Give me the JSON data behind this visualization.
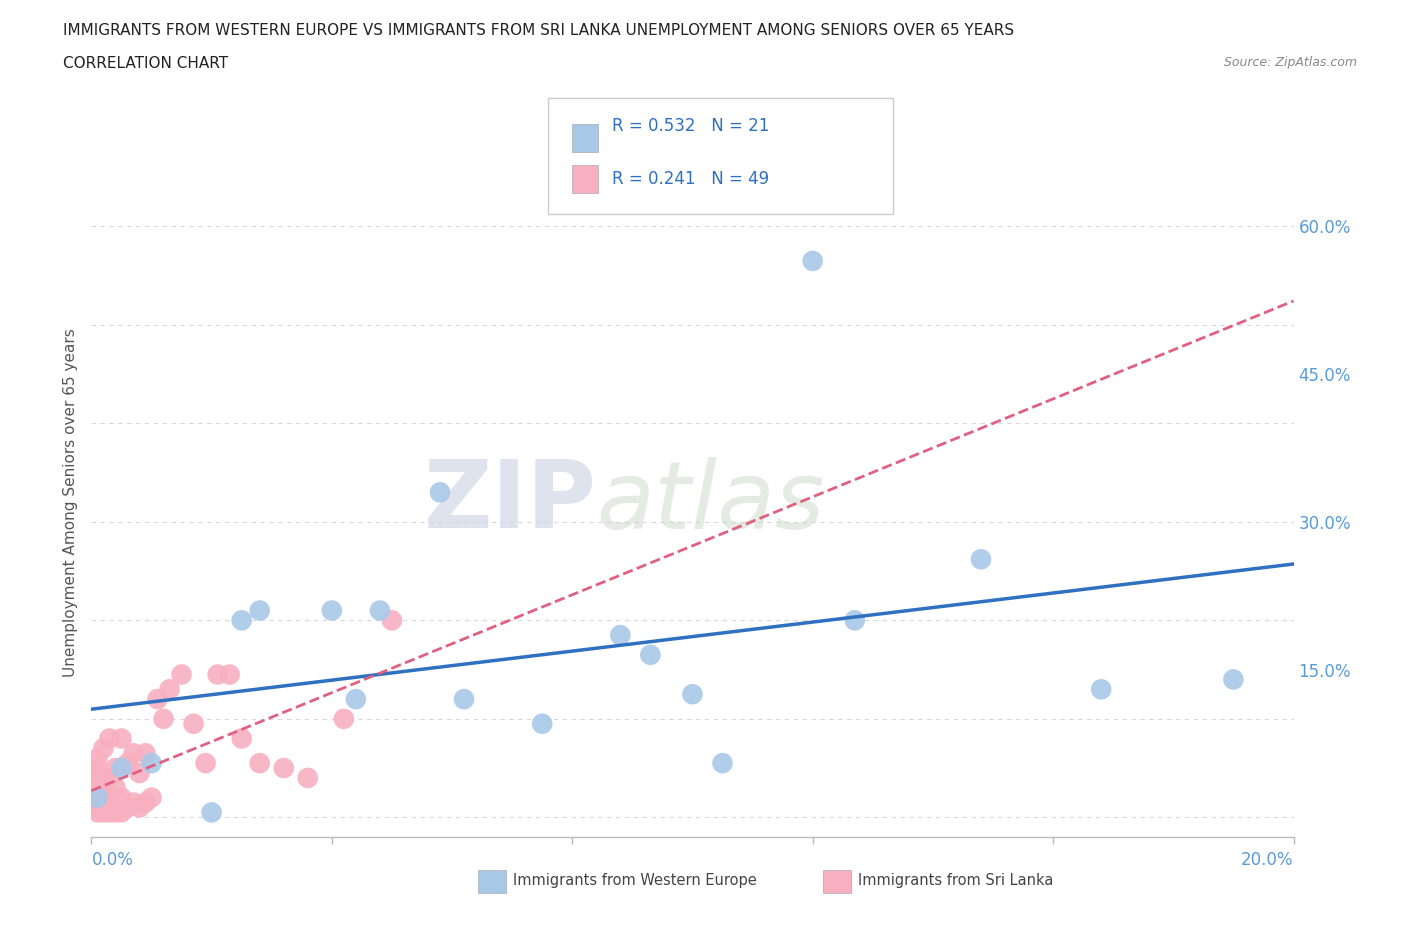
{
  "title_line1": "IMMIGRANTS FROM WESTERN EUROPE VS IMMIGRANTS FROM SRI LANKA UNEMPLOYMENT AMONG SENIORS OVER 65 YEARS",
  "title_line2": "CORRELATION CHART",
  "source": "Source: ZipAtlas.com",
  "ylabel": "Unemployment Among Seniors over 65 years",
  "y_ticks": [
    0.0,
    0.15,
    0.3,
    0.45,
    0.6
  ],
  "y_tick_labels": [
    "",
    "15.0%",
    "30.0%",
    "45.0%",
    "60.0%"
  ],
  "x_ticks": [
    0.0,
    0.04,
    0.08,
    0.12,
    0.16,
    0.2
  ],
  "xlim": [
    0.0,
    0.2
  ],
  "ylim": [
    -0.02,
    0.66
  ],
  "western_europe_color": "#a8c8e8",
  "sri_lanka_color": "#f8b0c0",
  "western_europe_line_color": "#3070c0",
  "sri_lanka_line_color": "#e06080",
  "western_europe_R": 0.532,
  "western_europe_N": 21,
  "sri_lanka_R": 0.241,
  "sri_lanka_N": 49,
  "western_europe_x": [
    0.001,
    0.005,
    0.01,
    0.02,
    0.025,
    0.028,
    0.04,
    0.044,
    0.048,
    0.058,
    0.062,
    0.075,
    0.088,
    0.093,
    0.1,
    0.105,
    0.12,
    0.127,
    0.148,
    0.168,
    0.19
  ],
  "western_europe_y": [
    0.02,
    0.05,
    0.055,
    0.005,
    0.2,
    0.21,
    0.21,
    0.12,
    0.21,
    0.33,
    0.12,
    0.095,
    0.185,
    0.165,
    0.125,
    0.055,
    0.565,
    0.2,
    0.262,
    0.13,
    0.14
  ],
  "sri_lanka_x": [
    0.001,
    0.001,
    0.001,
    0.001,
    0.001,
    0.001,
    0.001,
    0.001,
    0.002,
    0.002,
    0.002,
    0.002,
    0.002,
    0.002,
    0.003,
    0.003,
    0.003,
    0.003,
    0.003,
    0.004,
    0.004,
    0.004,
    0.004,
    0.005,
    0.005,
    0.005,
    0.006,
    0.006,
    0.007,
    0.007,
    0.008,
    0.008,
    0.009,
    0.009,
    0.01,
    0.011,
    0.012,
    0.013,
    0.015,
    0.017,
    0.019,
    0.021,
    0.023,
    0.025,
    0.028,
    0.032,
    0.036,
    0.042,
    0.05
  ],
  "sri_lanka_y": [
    0.005,
    0.01,
    0.015,
    0.02,
    0.03,
    0.04,
    0.05,
    0.06,
    0.005,
    0.01,
    0.02,
    0.03,
    0.04,
    0.07,
    0.005,
    0.01,
    0.02,
    0.04,
    0.08,
    0.005,
    0.01,
    0.03,
    0.05,
    0.005,
    0.02,
    0.08,
    0.01,
    0.055,
    0.015,
    0.065,
    0.01,
    0.045,
    0.015,
    0.065,
    0.02,
    0.12,
    0.1,
    0.13,
    0.145,
    0.095,
    0.055,
    0.145,
    0.145,
    0.08,
    0.055,
    0.05,
    0.04,
    0.1,
    0.2
  ],
  "watermark_zip": "ZIP",
  "watermark_atlas": "atlas",
  "background_color": "#ffffff",
  "grid_color": "#d8d8d8",
  "legend_R_color": "#3070c0",
  "legend_text_color": "#333333"
}
